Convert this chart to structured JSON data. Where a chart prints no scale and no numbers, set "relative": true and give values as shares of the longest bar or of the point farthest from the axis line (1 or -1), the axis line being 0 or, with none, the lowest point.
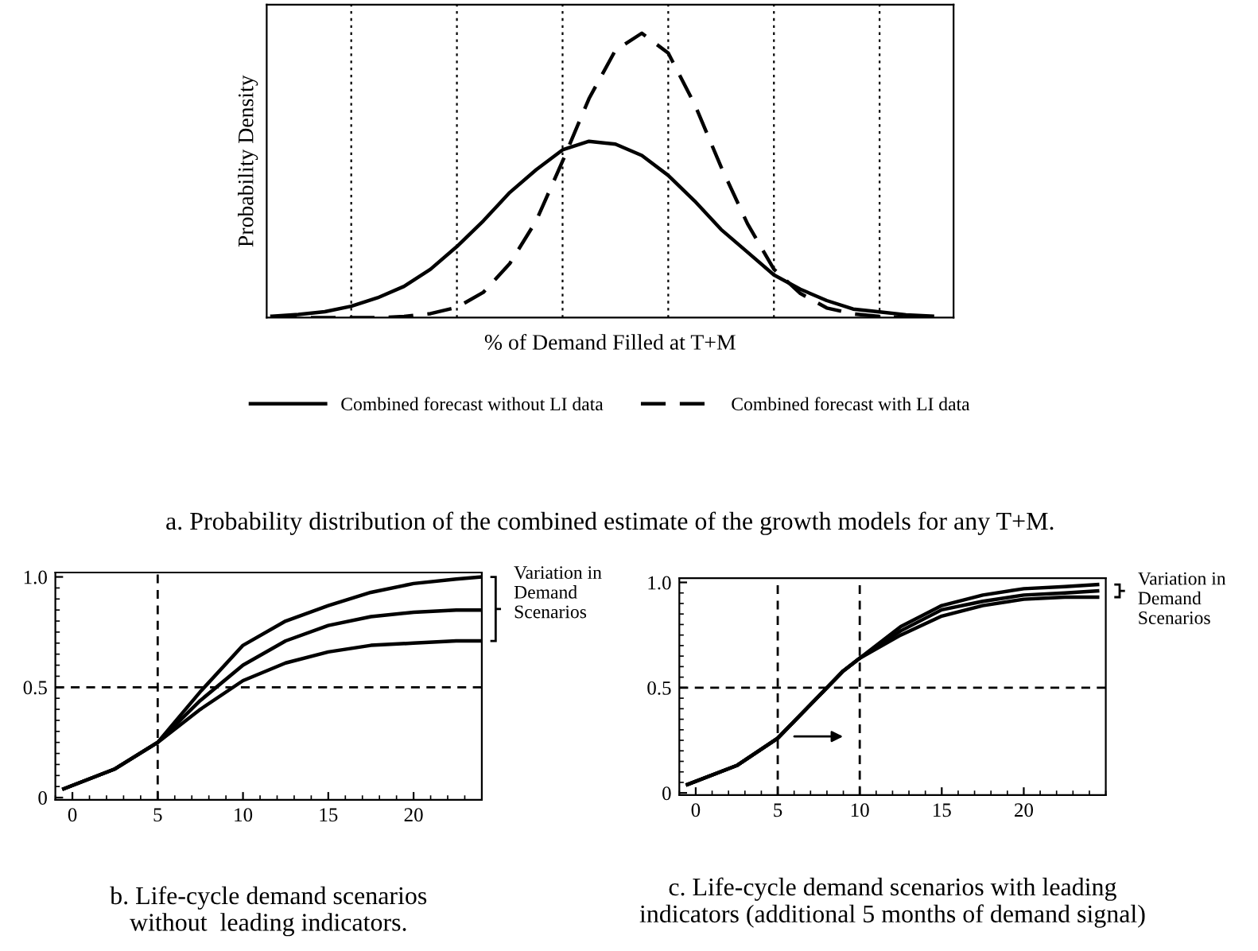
{
  "chart_data": [
    {
      "type": "line",
      "relative": true,
      "title": "a. Probability distribution of the combined estimate of the growth models for any T+M.",
      "xlabel": "% of Demand Filled at T+M",
      "ylabel": "Probability Density",
      "grid": "x",
      "legend": "bottom",
      "marker": "none",
      "categories": [
        null,
        null,
        null,
        null,
        null,
        null,
        null,
        null,
        null,
        null,
        null,
        null,
        null,
        null,
        null,
        null,
        null,
        null,
        null,
        null,
        null,
        null,
        null,
        null,
        null,
        null
      ],
      "series": [
        {
          "name": "Combined forecast without LI data",
          "color": "#000000",
          "line_style": "solid",
          "values": [
            0.005,
            0.011,
            0.021,
            0.04,
            0.07,
            0.11,
            0.17,
            0.25,
            0.34,
            0.44,
            0.52,
            0.59,
            0.62,
            0.61,
            0.57,
            0.5,
            0.41,
            0.31,
            0.23,
            0.15,
            0.1,
            0.06,
            0.03,
            0.02,
            0.01,
            0.005
          ]
        },
        {
          "name": "Combined forecast with LI data",
          "color": "#000000",
          "line_style": "dashed",
          "values": [
            0,
            0,
            0,
            0,
            0,
            0.004,
            0.014,
            0.036,
            0.089,
            0.19,
            0.34,
            0.55,
            0.77,
            0.94,
            1,
            0.93,
            0.75,
            0.53,
            0.33,
            0.17,
            0.085,
            0.034,
            0.013,
            0.004,
            0,
            0
          ]
        }
      ]
    },
    {
      "type": "line",
      "title": "b. Life-cycle demand scenarios\nwithout  leading indicators.",
      "annotations": [
        "Variation in\nDemand\nScenarios"
      ],
      "marker": "none",
      "grid": false,
      "xlim": [
        -1,
        24
      ],
      "xticks": [
        0,
        5,
        10,
        15,
        20
      ],
      "ylim": [
        -0.01,
        1.02
      ],
      "yticks": [
        0,
        0.5,
        {
          "value": 1,
          "label": "1.0"
        }
      ],
      "ref_lines": [
        {
          "axis": "x",
          "value": 5,
          "color": "#000000",
          "line_style": "dashed"
        },
        {
          "axis": "y",
          "value": 0.5,
          "color": "#000000",
          "line_style": "dashed"
        }
      ],
      "series": [
        {
          "color": "#000000",
          "x": [
            -0.5,
            2.5,
            5,
            7.5,
            10,
            12.5,
            15,
            17.5,
            20,
            22.5,
            24
          ],
          "values": [
            0.04,
            0.13,
            0.25,
            0.48,
            0.69,
            0.8,
            0.87,
            0.93,
            0.97,
            0.99,
            1.0
          ]
        },
        {
          "color": "#000000",
          "x": [
            -0.5,
            2.5,
            5,
            7.5,
            10,
            12.5,
            15,
            17.5,
            20,
            22.5,
            24
          ],
          "values": [
            0.04,
            0.13,
            0.25,
            0.44,
            0.6,
            0.71,
            0.78,
            0.82,
            0.84,
            0.85,
            0.85
          ]
        },
        {
          "color": "#000000",
          "x": [
            -0.5,
            2.5,
            5,
            7.5,
            10,
            12.5,
            15,
            17.5,
            20,
            22.5,
            24
          ],
          "values": [
            0.04,
            0.13,
            0.25,
            0.4,
            0.53,
            0.61,
            0.66,
            0.69,
            0.7,
            0.71,
            0.71
          ]
        }
      ]
    },
    {
      "type": "line",
      "title": "c. Life-cycle demand scenarios with leading\nindicators (additional 5 months of demand signal)",
      "annotations": [
        "Variation in\nDemand\nScenarios"
      ],
      "marker": "none",
      "grid": false,
      "xlim": [
        -1,
        25
      ],
      "xticks": [
        0,
        5,
        10,
        15,
        20
      ],
      "ylim": [
        -0.01,
        1.02
      ],
      "yticks": [
        0,
        0.5,
        {
          "value": 1,
          "label": "1.0"
        }
      ],
      "ref_lines": [
        {
          "axis": "x",
          "value": 5,
          "color": "#000000",
          "line_style": "dashed"
        },
        {
          "axis": "x",
          "value": 10,
          "color": "#000000",
          "line_style": "dashed"
        },
        {
          "axis": "y",
          "value": 0.5,
          "color": "#000000",
          "line_style": "dashed"
        }
      ],
      "series": [
        {
          "color": "#000000",
          "x": [
            -0.5,
            2.5,
            5,
            7.5,
            9,
            10,
            12.5,
            15,
            17.5,
            20,
            22.5,
            24.5
          ],
          "values": [
            0.04,
            0.13,
            0.26,
            0.46,
            0.58,
            0.64,
            0.79,
            0.89,
            0.94,
            0.97,
            0.98,
            0.99
          ]
        },
        {
          "color": "#000000",
          "x": [
            -0.5,
            2.5,
            5,
            7.5,
            9,
            10,
            12.5,
            15,
            17.5,
            20,
            22.5,
            24.5
          ],
          "values": [
            0.04,
            0.13,
            0.26,
            0.46,
            0.58,
            0.64,
            0.77,
            0.87,
            0.91,
            0.94,
            0.95,
            0.96
          ]
        },
        {
          "color": "#000000",
          "x": [
            -0.5,
            2.5,
            5,
            7.5,
            9,
            10,
            12.5,
            15,
            17.5,
            20,
            22.5,
            24.5
          ],
          "values": [
            0.04,
            0.13,
            0.26,
            0.46,
            0.58,
            0.64,
            0.75,
            0.84,
            0.89,
            0.92,
            0.93,
            0.93
          ]
        }
      ]
    }
  ]
}
